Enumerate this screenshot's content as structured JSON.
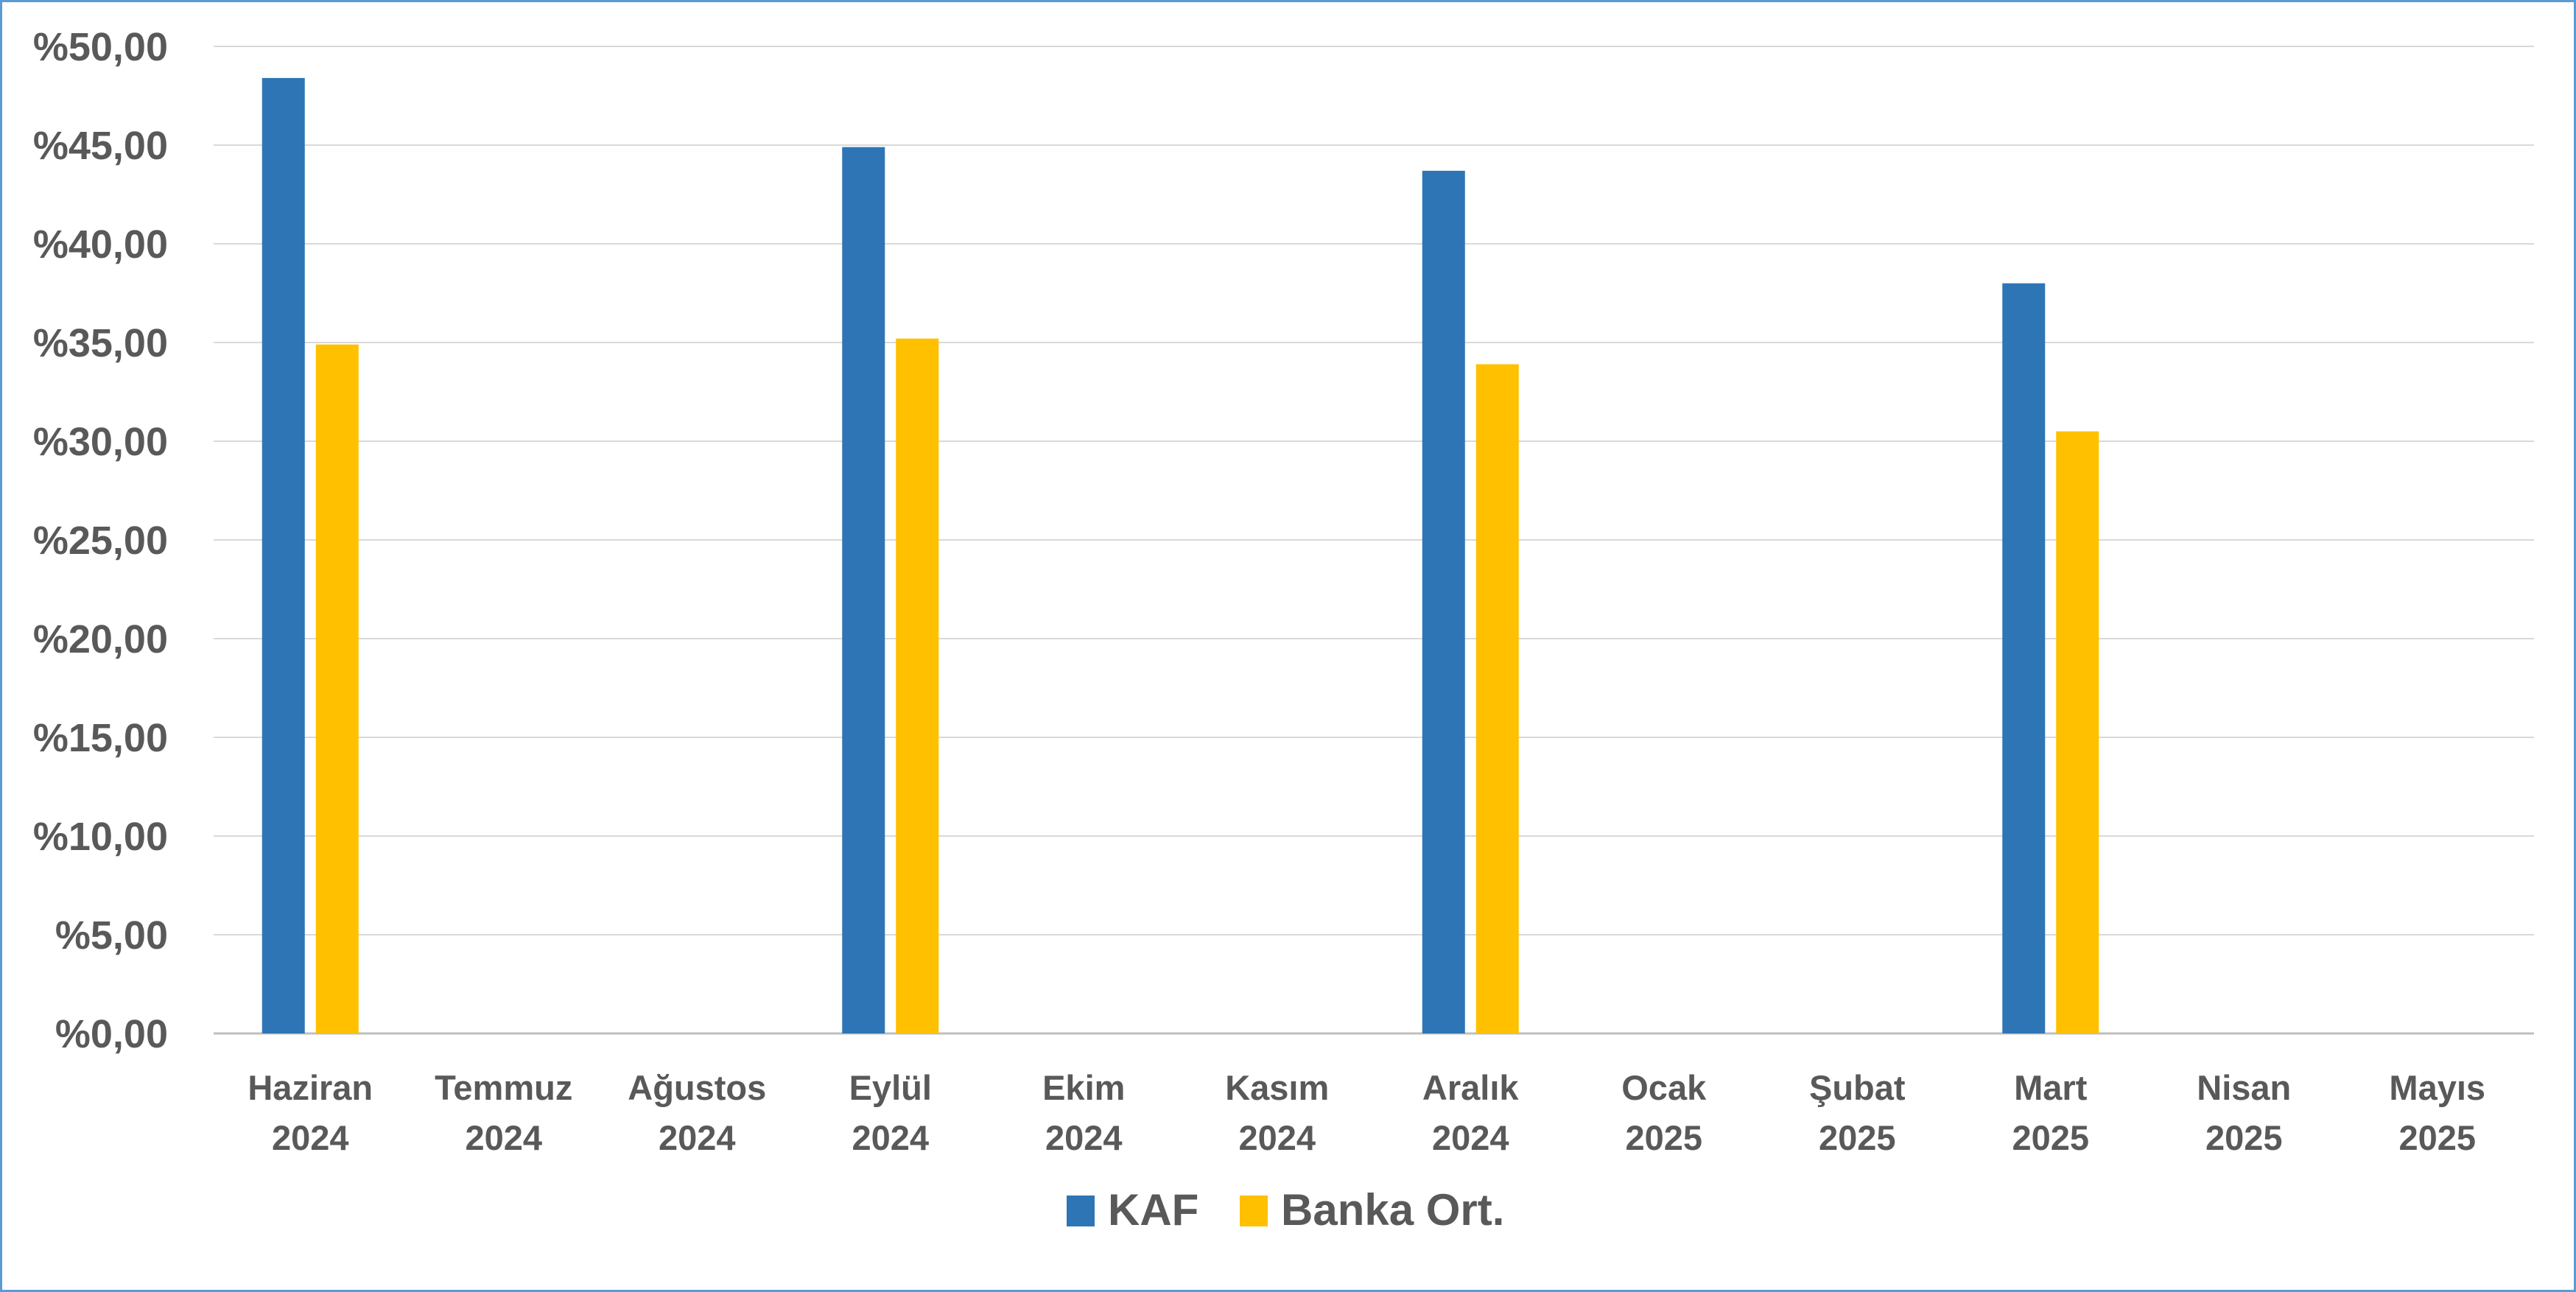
{
  "chart_data": {
    "type": "bar",
    "title": "",
    "xlabel": "",
    "ylabel": "",
    "ylim": [
      0,
      50
    ],
    "y_ticks": [
      "%0,00",
      "%5,00",
      "%10,00",
      "%15,00",
      "%20,00",
      "%25,00",
      "%30,00",
      "%35,00",
      "%40,00",
      "%45,00",
      "%50,00"
    ],
    "categories": [
      [
        "Haziran",
        "2024"
      ],
      [
        "Temmuz",
        "2024"
      ],
      [
        "Ağustos",
        "2024"
      ],
      [
        "Eylül",
        "2024"
      ],
      [
        "Ekim",
        "2024"
      ],
      [
        "Kasım",
        "2024"
      ],
      [
        "Aralık",
        "2024"
      ],
      [
        "Ocak",
        "2025"
      ],
      [
        "Şubat",
        "2025"
      ],
      [
        "Mart",
        "2025"
      ],
      [
        "Nisan",
        "2025"
      ],
      [
        "Mayıs",
        "2025"
      ]
    ],
    "series": [
      {
        "name": "KAF",
        "color": "#2e75b6",
        "values": [
          48.4,
          null,
          null,
          44.9,
          null,
          null,
          43.7,
          null,
          null,
          38.0,
          null,
          null
        ]
      },
      {
        "name": "Banka Ort.",
        "color": "#ffc000",
        "values": [
          34.9,
          null,
          null,
          35.2,
          null,
          null,
          33.9,
          null,
          null,
          30.5,
          null,
          null
        ]
      }
    ],
    "grid": true,
    "legend_position": "bottom"
  },
  "colors": {
    "frame_border": "#5b9bd5",
    "gridline": "#d9d9d9",
    "axis_text": "#595959"
  }
}
